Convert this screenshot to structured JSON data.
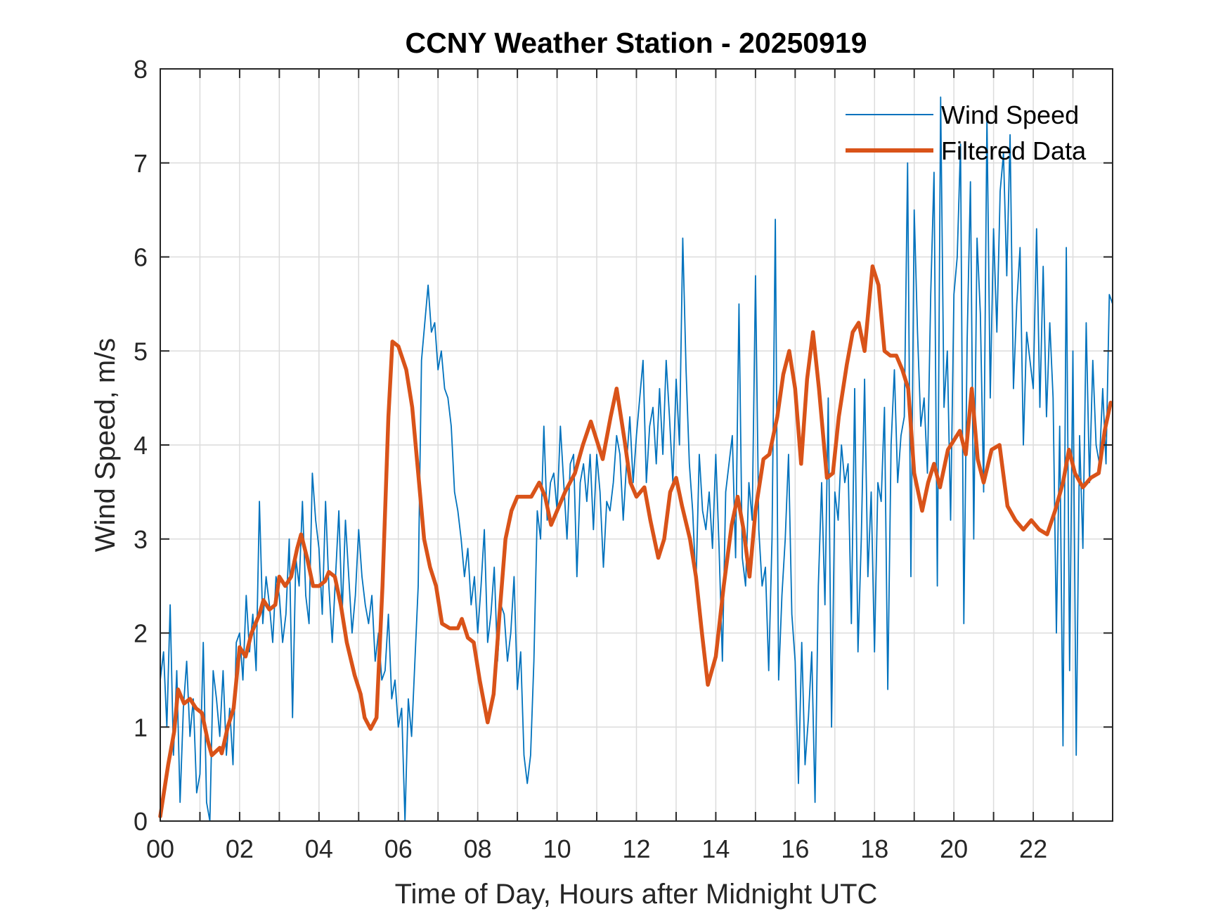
{
  "chart_data": {
    "type": "line",
    "title": "CCNY Weather Station - 20250919",
    "xlabel": "Time of Day, Hours after Midnight UTC",
    "ylabel": "Wind Speed, m/s",
    "xlim": [
      0,
      24
    ],
    "ylim": [
      0,
      8
    ],
    "grid": true,
    "legend_position": "top-right",
    "x_ticks": [
      0,
      2,
      4,
      6,
      8,
      10,
      12,
      14,
      16,
      18,
      20,
      22
    ],
    "x_tick_labels": [
      "00",
      "02",
      "04",
      "06",
      "08",
      "10",
      "12",
      "14",
      "16",
      "18",
      "20",
      "22"
    ],
    "x_minor_ticks": [
      1,
      3,
      5,
      7,
      9,
      11,
      13,
      15,
      17,
      19,
      21,
      23
    ],
    "y_ticks": [
      0,
      1,
      2,
      3,
      4,
      5,
      6,
      7,
      8
    ],
    "y_tick_labels": [
      "0",
      "1",
      "2",
      "3",
      "4",
      "5",
      "6",
      "7",
      "8"
    ],
    "series": [
      {
        "name": "Wind Speed",
        "color": "#0072BD",
        "style": "thin",
        "x_step_hours": 0.0833333,
        "values": [
          1.5,
          1.8,
          1.0,
          2.3,
          0.7,
          1.6,
          0.2,
          1.2,
          1.7,
          0.9,
          1.3,
          0.3,
          0.5,
          1.9,
          0.2,
          0.0,
          1.6,
          1.3,
          0.9,
          1.6,
          0.7,
          1.2,
          0.6,
          1.9,
          2.0,
          1.5,
          2.4,
          1.8,
          2.2,
          1.6,
          3.4,
          2.1,
          2.6,
          2.3,
          1.9,
          2.6,
          2.4,
          1.9,
          2.2,
          3.0,
          1.1,
          2.8,
          2.5,
          3.4,
          2.4,
          2.1,
          3.7,
          3.2,
          2.9,
          2.2,
          3.4,
          2.5,
          1.9,
          2.6,
          3.3,
          2.2,
          3.2,
          2.6,
          2.0,
          2.4,
          3.1,
          2.6,
          2.3,
          2.1,
          2.4,
          1.7,
          2.0,
          1.5,
          1.6,
          2.2,
          1.3,
          1.5,
          1.0,
          1.2,
          0.0,
          1.3,
          0.9,
          1.7,
          2.5,
          4.9,
          5.3,
          5.7,
          5.2,
          5.3,
          4.8,
          5.0,
          4.6,
          4.5,
          4.2,
          3.5,
          3.3,
          3.0,
          2.6,
          2.9,
          2.3,
          2.6,
          2.0,
          2.5,
          3.1,
          1.9,
          2.2,
          2.7,
          1.7,
          2.3,
          2.2,
          1.7,
          2.0,
          2.6,
          1.4,
          1.8,
          0.7,
          0.4,
          0.7,
          1.7,
          3.3,
          3.0,
          4.2,
          3.2,
          3.6,
          3.7,
          3.3,
          4.2,
          3.6,
          3.0,
          3.8,
          3.9,
          2.6,
          3.6,
          3.8,
          3.4,
          3.9,
          3.1,
          3.9,
          3.5,
          2.7,
          3.4,
          3.3,
          3.6,
          4.1,
          3.9,
          3.2,
          3.8,
          4.3,
          3.6,
          4.1,
          4.5,
          4.9,
          3.6,
          4.2,
          4.4,
          3.8,
          4.6,
          3.9,
          4.9,
          4.3,
          3.6,
          4.7,
          4.0,
          6.2,
          4.8,
          3.8,
          3.3,
          2.5,
          3.9,
          3.3,
          3.1,
          3.5,
          2.9,
          3.9,
          2.9,
          1.7,
          3.5,
          3.8,
          4.1,
          2.8,
          5.5,
          2.8,
          2.5,
          3.6,
          3.2,
          5.8,
          3.1,
          2.5,
          2.7,
          1.6,
          3.0,
          6.4,
          1.5,
          2.4,
          3.0,
          3.9,
          2.2,
          1.7,
          0.4,
          1.9,
          0.6,
          1.1,
          1.8,
          0.2,
          2.5,
          3.6,
          2.3,
          4.5,
          1.0,
          3.5,
          3.2,
          4.0,
          3.6,
          3.8,
          2.1,
          4.6,
          1.8,
          3.0,
          4.7,
          2.6,
          3.5,
          1.8,
          3.6,
          3.4,
          4.4,
          1.4,
          4.0,
          4.8,
          3.6,
          4.1,
          4.3,
          7.0,
          2.6,
          6.5,
          5.2,
          4.2,
          4.5,
          3.7,
          5.6,
          6.9,
          2.5,
          7.7,
          4.4,
          5.0,
          3.2,
          5.6,
          6.0,
          7.2,
          2.1,
          5.1,
          6.8,
          3.0,
          6.2,
          5.4,
          3.5,
          7.5,
          4.5,
          6.3,
          5.2,
          6.7,
          7.1,
          5.8,
          7.3,
          4.6,
          5.5,
          6.1,
          4.0,
          5.2,
          4.9,
          4.6,
          6.3,
          4.4,
          5.9,
          4.3,
          5.3,
          4.5,
          2.0,
          4.2,
          0.8,
          6.1,
          1.6,
          5.0,
          0.7,
          4.1,
          2.9,
          5.3,
          3.6,
          4.9,
          4.0,
          3.8,
          4.6,
          3.8,
          5.6,
          5.5,
          4.1,
          0.9,
          4.5,
          3.2,
          7.1,
          5.0,
          3.0,
          6.5,
          4.3,
          3.9,
          2.7,
          4.4,
          3.4,
          4.1,
          3.5,
          3.6,
          2.8,
          4.3,
          1.3,
          4.3,
          3.0,
          4.0,
          2.7,
          4.5,
          3.5,
          2.3,
          4.1,
          3.3,
          4.0,
          2.1,
          4.4,
          3.0,
          4.7,
          3.2,
          5.0,
          0.6,
          4.1,
          2.6,
          4.4,
          3.7,
          3.3,
          4.9,
          3.5,
          2.8,
          3.9,
          3.3,
          4.4,
          1.8,
          4.1,
          3.4,
          5.1,
          3.6,
          4.4,
          4.9,
          3.9,
          4.5
        ]
      },
      {
        "name": "Filtered Data",
        "color": "#D95319",
        "style": "thick",
        "points": [
          [
            0.0,
            0.05
          ],
          [
            0.2,
            0.6
          ],
          [
            0.35,
            0.95
          ],
          [
            0.45,
            1.4
          ],
          [
            0.6,
            1.25
          ],
          [
            0.75,
            1.3
          ],
          [
            0.9,
            1.2
          ],
          [
            1.05,
            1.15
          ],
          [
            1.2,
            0.85
          ],
          [
            1.3,
            0.7
          ],
          [
            1.5,
            0.78
          ],
          [
            1.55,
            0.72
          ],
          [
            1.7,
            1.0
          ],
          [
            1.85,
            1.2
          ],
          [
            2.0,
            1.85
          ],
          [
            2.15,
            1.75
          ],
          [
            2.3,
            2.0
          ],
          [
            2.5,
            2.2
          ],
          [
            2.6,
            2.35
          ],
          [
            2.75,
            2.25
          ],
          [
            2.9,
            2.3
          ],
          [
            3.0,
            2.6
          ],
          [
            3.15,
            2.5
          ],
          [
            3.3,
            2.6
          ],
          [
            3.45,
            2.9
          ],
          [
            3.55,
            3.05
          ],
          [
            3.7,
            2.8
          ],
          [
            3.85,
            2.5
          ],
          [
            4.0,
            2.5
          ],
          [
            4.15,
            2.55
          ],
          [
            4.25,
            2.65
          ],
          [
            4.4,
            2.6
          ],
          [
            4.55,
            2.3
          ],
          [
            4.7,
            1.9
          ],
          [
            4.9,
            1.55
          ],
          [
            5.05,
            1.35
          ],
          [
            5.15,
            1.1
          ],
          [
            5.3,
            0.98
          ],
          [
            5.45,
            1.1
          ],
          [
            5.6,
            2.5
          ],
          [
            5.75,
            4.3
          ],
          [
            5.85,
            5.1
          ],
          [
            6.0,
            5.05
          ],
          [
            6.2,
            4.8
          ],
          [
            6.35,
            4.4
          ],
          [
            6.5,
            3.7
          ],
          [
            6.65,
            3.0
          ],
          [
            6.8,
            2.7
          ],
          [
            6.95,
            2.5
          ],
          [
            7.1,
            2.1
          ],
          [
            7.3,
            2.05
          ],
          [
            7.5,
            2.05
          ],
          [
            7.6,
            2.15
          ],
          [
            7.75,
            1.95
          ],
          [
            7.9,
            1.9
          ],
          [
            8.05,
            1.5
          ],
          [
            8.25,
            1.05
          ],
          [
            8.4,
            1.35
          ],
          [
            8.55,
            2.2
          ],
          [
            8.7,
            3.0
          ],
          [
            8.85,
            3.3
          ],
          [
            9.0,
            3.45
          ],
          [
            9.2,
            3.45
          ],
          [
            9.35,
            3.45
          ],
          [
            9.55,
            3.6
          ],
          [
            9.7,
            3.45
          ],
          [
            9.85,
            3.15
          ],
          [
            10.0,
            3.3
          ],
          [
            10.2,
            3.5
          ],
          [
            10.45,
            3.7
          ],
          [
            10.65,
            4.0
          ],
          [
            10.85,
            4.25
          ],
          [
            11.0,
            4.05
          ],
          [
            11.15,
            3.85
          ],
          [
            11.35,
            4.3
          ],
          [
            11.5,
            4.6
          ],
          [
            11.7,
            4.05
          ],
          [
            11.85,
            3.6
          ],
          [
            12.0,
            3.45
          ],
          [
            12.2,
            3.55
          ],
          [
            12.35,
            3.2
          ],
          [
            12.55,
            2.8
          ],
          [
            12.7,
            3.0
          ],
          [
            12.85,
            3.5
          ],
          [
            13.0,
            3.65
          ],
          [
            13.15,
            3.35
          ],
          [
            13.35,
            3.0
          ],
          [
            13.5,
            2.6
          ],
          [
            13.65,
            2.0
          ],
          [
            13.8,
            1.45
          ],
          [
            14.0,
            1.75
          ],
          [
            14.2,
            2.5
          ],
          [
            14.4,
            3.15
          ],
          [
            14.55,
            3.45
          ],
          [
            14.7,
            3.1
          ],
          [
            14.85,
            2.6
          ],
          [
            15.0,
            3.3
          ],
          [
            15.2,
            3.85
          ],
          [
            15.35,
            3.9
          ],
          [
            15.55,
            4.3
          ],
          [
            15.7,
            4.75
          ],
          [
            15.85,
            5.0
          ],
          [
            16.0,
            4.6
          ],
          [
            16.15,
            3.8
          ],
          [
            16.3,
            4.7
          ],
          [
            16.45,
            5.2
          ],
          [
            16.6,
            4.6
          ],
          [
            16.8,
            3.65
          ],
          [
            16.95,
            3.7
          ],
          [
            17.1,
            4.3
          ],
          [
            17.3,
            4.85
          ],
          [
            17.45,
            5.2
          ],
          [
            17.6,
            5.3
          ],
          [
            17.75,
            5.0
          ],
          [
            17.95,
            5.9
          ],
          [
            18.1,
            5.7
          ],
          [
            18.25,
            5.0
          ],
          [
            18.4,
            4.95
          ],
          [
            18.55,
            4.95
          ],
          [
            18.7,
            4.8
          ],
          [
            18.85,
            4.6
          ],
          [
            19.0,
            3.7
          ],
          [
            19.2,
            3.3
          ],
          [
            19.35,
            3.6
          ],
          [
            19.5,
            3.8
          ],
          [
            19.65,
            3.55
          ],
          [
            19.85,
            3.95
          ],
          [
            20.0,
            4.05
          ],
          [
            20.15,
            4.15
          ],
          [
            20.3,
            3.9
          ],
          [
            20.45,
            4.6
          ],
          [
            20.6,
            3.85
          ],
          [
            20.75,
            3.6
          ],
          [
            20.95,
            3.95
          ],
          [
            21.15,
            4.0
          ],
          [
            21.35,
            3.35
          ],
          [
            21.55,
            3.2
          ],
          [
            21.75,
            3.1
          ],
          [
            21.95,
            3.2
          ],
          [
            22.15,
            3.1
          ],
          [
            22.35,
            3.05
          ],
          [
            22.55,
            3.3
          ],
          [
            22.75,
            3.6
          ],
          [
            22.9,
            3.95
          ],
          [
            23.05,
            3.7
          ],
          [
            23.25,
            3.55
          ],
          [
            23.45,
            3.65
          ],
          [
            23.65,
            3.7
          ],
          [
            23.8,
            4.15
          ],
          [
            23.95,
            4.45
          ]
        ]
      }
    ]
  }
}
